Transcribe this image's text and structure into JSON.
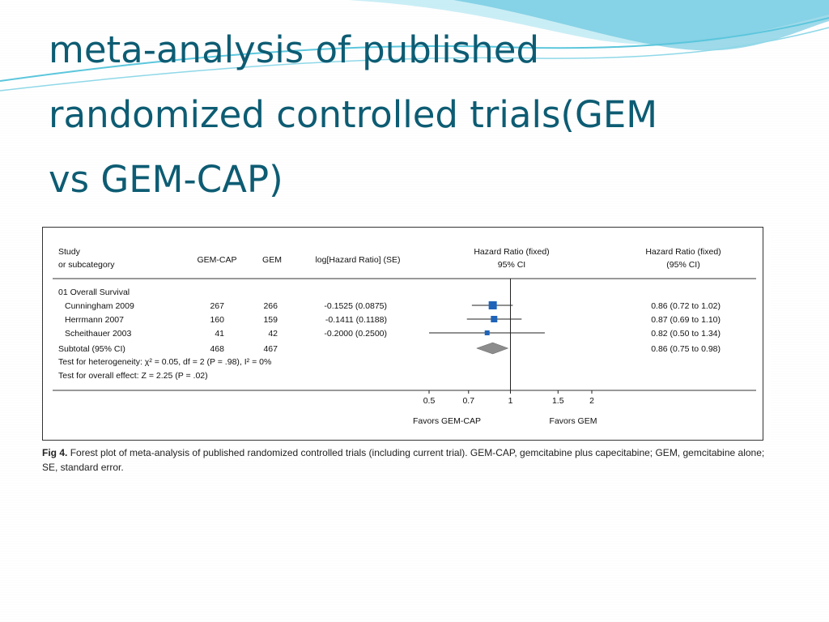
{
  "slide": {
    "title_lines": [
      "meta-analysis of published",
      "randomized controlled trials(GEM",
      "vs GEM-CAP)"
    ],
    "colors": {
      "title": "#0d5c73",
      "accent_wave": "#5bc6dc",
      "marker": "#1f64b8",
      "diamond": "#8c8c8c"
    }
  },
  "chart_data": {
    "type": "forest",
    "scale": "log",
    "headers": {
      "study": [
        "Study",
        "or subcategory"
      ],
      "arm1": "GEM-CAP",
      "arm2": "GEM",
      "loghr": "log[Hazard Ratio] (SE)",
      "plot": [
        "Hazard Ratio (fixed)",
        "95% CI"
      ],
      "hrci": [
        "Hazard Ratio (fixed)",
        "(95% CI)"
      ]
    },
    "group_label": "01 Overall Survival",
    "studies": [
      {
        "name": "Cunningham 2009",
        "arm1": "267",
        "arm2": "266",
        "loghr": "-0.1525 (0.0875)",
        "hr": 0.86,
        "lo": 0.72,
        "hi": 1.02,
        "hrci": "0.86 (0.72 to 1.02)",
        "weight": 3
      },
      {
        "name": "Herrmann 2007",
        "arm1": "160",
        "arm2": "159",
        "loghr": "-0.1411 (0.1188)",
        "hr": 0.87,
        "lo": 0.69,
        "hi": 1.1,
        "hrci": "0.87 (0.69 to 1.10)",
        "weight": 2
      },
      {
        "name": "Scheithauer 2003",
        "arm1": "41",
        "arm2": "42",
        "loghr": "-0.2000 (0.2500)",
        "hr": 0.82,
        "lo": 0.5,
        "hi": 1.34,
        "hrci": "0.82 (0.50 to 1.34)",
        "weight": 1
      }
    ],
    "subtotal": {
      "name": "Subtotal (95% CI)",
      "arm1": "468",
      "arm2": "467",
      "hr": 0.86,
      "lo": 0.75,
      "hi": 0.98,
      "hrci": "0.86 (0.75 to 0.98)"
    },
    "heterogeneity": "Test for heterogeneity: χ² = 0.05, df = 2 (P = .98), I² = 0%",
    "overall_effect": "Test for overall effect: Z = 2.25 (P = .02)",
    "x_ticks": [
      {
        "value": 0.5,
        "label": "0.5"
      },
      {
        "value": 0.7,
        "label": "0.7"
      },
      {
        "value": 1,
        "label": "1"
      },
      {
        "value": 1.5,
        "label": "1.5"
      },
      {
        "value": 2,
        "label": "2"
      }
    ],
    "favors_left": "Favors GEM-CAP",
    "favors_right": "Favors GEM"
  },
  "caption": {
    "label": "Fig 4.",
    "text": "Forest plot of meta-analysis of published randomized controlled trials (including current trial). GEM-CAP, gemcitabine plus capecitabine; GEM, gemcitabine alone; SE, standard error."
  }
}
